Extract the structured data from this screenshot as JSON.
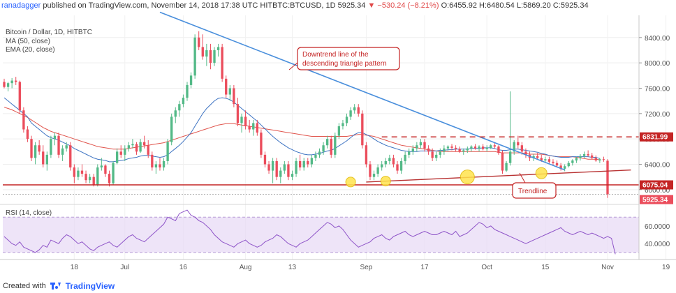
{
  "header": {
    "user": "ranadagger",
    "published": "published on TradingView.com, November 14, 2018 17:38 UTC",
    "symbol": "HITBTC:BTCUSD, 1D",
    "last": "5925.34",
    "change_arrow": "▼",
    "change": "−530.24 (−8.21%)",
    "open": "O:6455.92",
    "high": "H:6480.54",
    "low": "L:5869.20",
    "close": "C:5925.34"
  },
  "footer": {
    "created": "Created with",
    "brand": "TradingView"
  },
  "chart_data": {
    "type": "candlestick",
    "title": "Bitcoin / Dollar, 1D, HITBTC",
    "indicators": [
      "MA (50, close)",
      "EMA (20, close)"
    ],
    "colors": {
      "up": "#53b987",
      "down": "#eb4d5c",
      "ma50": "#e0544c",
      "ema20": "#3d73c2",
      "downtrend": "#4a8fdc",
      "support": "#c42424",
      "rsi": "#8e54c8",
      "rsi_band": "#e7d9f5"
    },
    "x_tick_labels": [
      "18",
      "Jul",
      "16",
      "Aug",
      "13",
      "Sep",
      "17",
      "Oct",
      "15",
      "Nov",
      "19"
    ],
    "x_tick_days": [
      18,
      31,
      46,
      62,
      74,
      93,
      108,
      124,
      139,
      155,
      170
    ],
    "price_ticks": [
      "8400.00",
      "8000.00",
      "7600.00",
      "7200.00",
      "6800.00",
      "6400.00",
      "6000.00"
    ],
    "ylim": [
      5800,
      8750
    ],
    "levels": [
      {
        "name": "resistance",
        "value": 6831.99,
        "label": "6831.99"
      },
      {
        "name": "support",
        "value": 6075.04,
        "label": "6075.04"
      },
      {
        "name": "last",
        "value": 5925.34,
        "label": "5925.34"
      }
    ],
    "annotations": [
      "Downtrend line of the descending triangle pattern",
      "Trendline"
    ],
    "rsi": {
      "label": "RSI (14, close)",
      "ticks": [
        "60.0000",
        "40.0000"
      ],
      "ylim": [
        22,
        82
      ],
      "band": [
        30,
        70
      ],
      "values": [
        48,
        44,
        40,
        38,
        42,
        36,
        34,
        32,
        30,
        33,
        38,
        36,
        44,
        42,
        40,
        46,
        50,
        48,
        44,
        40,
        42,
        38,
        34,
        32,
        36,
        38,
        40,
        42,
        38,
        36,
        40,
        44,
        48,
        50,
        46,
        44,
        42,
        46,
        50,
        54,
        58,
        62,
        70,
        68,
        66,
        74,
        76,
        78,
        72,
        70,
        66,
        64,
        60,
        56,
        50,
        46,
        42,
        40,
        38,
        36,
        40,
        42,
        44,
        40,
        38,
        36,
        38,
        42,
        44,
        46,
        50,
        48,
        44,
        40,
        38,
        36,
        40,
        42,
        44,
        48,
        52,
        56,
        60,
        64,
        62,
        58,
        60,
        56,
        50,
        44,
        40,
        36,
        38,
        40,
        42,
        46,
        48,
        50,
        46,
        44,
        48,
        50,
        52,
        54,
        50,
        48,
        50,
        52,
        54,
        52,
        50,
        50,
        52,
        54,
        52,
        50,
        54,
        48,
        50,
        52,
        56,
        60,
        64,
        62,
        58,
        60,
        56,
        54,
        52,
        50,
        48,
        46,
        44,
        42,
        40,
        42,
        44,
        46,
        48,
        50,
        52,
        54,
        56,
        58,
        54,
        52,
        50,
        52,
        54,
        52,
        50,
        52,
        50,
        48,
        46,
        48,
        46,
        28
      ]
    },
    "ohlc": [
      [
        7700,
        7750,
        7600,
        7620
      ],
      [
        7620,
        7700,
        7550,
        7680
      ],
      [
        7680,
        7760,
        7600,
        7720
      ],
      [
        7720,
        7780,
        7650,
        7700
      ],
      [
        7700,
        7720,
        7200,
        7250
      ],
      [
        7250,
        7300,
        6900,
        6950
      ],
      [
        6950,
        7000,
        6750,
        6800
      ],
      [
        6800,
        6850,
        6450,
        6500
      ],
      [
        6500,
        6750,
        6400,
        6700
      ],
      [
        6700,
        6780,
        6550,
        6600
      ],
      [
        6600,
        6700,
        6350,
        6400
      ],
      [
        6400,
        6600,
        6300,
        6550
      ],
      [
        6550,
        6850,
        6500,
        6800
      ],
      [
        6800,
        6900,
        6700,
        6850
      ],
      [
        6850,
        6900,
        6500,
        6550
      ],
      [
        6550,
        6700,
        6450,
        6650
      ],
      [
        6650,
        6750,
        6600,
        6700
      ],
      [
        6700,
        6750,
        6300,
        6350
      ],
      [
        6350,
        6400,
        6100,
        6200
      ],
      [
        6200,
        6350,
        6150,
        6300
      ],
      [
        6300,
        6400,
        6200,
        6250
      ],
      [
        6250,
        6300,
        6100,
        6150
      ],
      [
        6150,
        6250,
        6100,
        6200
      ],
      [
        6200,
        6250,
        6050,
        6080
      ],
      [
        6080,
        6400,
        6050,
        6350
      ],
      [
        6350,
        6500,
        6300,
        6380
      ],
      [
        6380,
        6400,
        6200,
        6250
      ],
      [
        6250,
        6300,
        6050,
        6100
      ],
      [
        6100,
        6450,
        6080,
        6420
      ],
      [
        6420,
        6650,
        6400,
        6600
      ],
      [
        6600,
        6700,
        6500,
        6550
      ],
      [
        6550,
        6700,
        6450,
        6650
      ],
      [
        6650,
        6750,
        6600,
        6700
      ],
      [
        6700,
        6800,
        6650,
        6720
      ],
      [
        6720,
        6750,
        6550,
        6600
      ],
      [
        6600,
        6800,
        6580,
        6750
      ],
      [
        6750,
        6850,
        6650,
        6700
      ],
      [
        6700,
        6780,
        6500,
        6550
      ],
      [
        6550,
        6600,
        6300,
        6350
      ],
      [
        6350,
        6450,
        6250,
        6400
      ],
      [
        6400,
        6500,
        6300,
        6350
      ],
      [
        6350,
        6500,
        6300,
        6450
      ],
      [
        6450,
        6800,
        6400,
        6750
      ],
      [
        6750,
        7200,
        6700,
        7150
      ],
      [
        7150,
        7300,
        7050,
        7250
      ],
      [
        7250,
        7400,
        7150,
        7350
      ],
      [
        7350,
        7500,
        7300,
        7450
      ],
      [
        7450,
        7700,
        7400,
        7650
      ],
      [
        7650,
        7850,
        7600,
        7800
      ],
      [
        7800,
        8450,
        7750,
        8400
      ],
      [
        8400,
        8500,
        8200,
        8250
      ],
      [
        8250,
        8450,
        8050,
        8100
      ],
      [
        8100,
        8300,
        7950,
        8200
      ],
      [
        8200,
        8300,
        7900,
        8000
      ],
      [
        8000,
        8250,
        7950,
        8200
      ],
      [
        8200,
        8300,
        8100,
        8250
      ],
      [
        8250,
        8300,
        7700,
        7750
      ],
      [
        7750,
        7800,
        7450,
        7500
      ],
      [
        7500,
        7650,
        7400,
        7600
      ],
      [
        7600,
        7650,
        7300,
        7350
      ],
      [
        7350,
        7450,
        7000,
        7050
      ],
      [
        7050,
        7200,
        6900,
        7150
      ],
      [
        7150,
        7250,
        6950,
        7000
      ],
      [
        7000,
        7100,
        6900,
        6950
      ],
      [
        6950,
        7100,
        6850,
        7050
      ],
      [
        7050,
        7100,
        6850,
        6900
      ],
      [
        6900,
        6950,
        6500,
        6550
      ],
      [
        6550,
        6600,
        6350,
        6400
      ],
      [
        6400,
        6450,
        6250,
        6300
      ],
      [
        6300,
        6500,
        6100,
        6450
      ],
      [
        6450,
        6500,
        6150,
        6200
      ],
      [
        6200,
        6350,
        6100,
        6300
      ],
      [
        6300,
        6450,
        6250,
        6400
      ],
      [
        6400,
        6450,
        6150,
        6200
      ],
      [
        6200,
        6300,
        6150,
        6250
      ],
      [
        6250,
        6500,
        6200,
        6450
      ],
      [
        6450,
        6550,
        6300,
        6350
      ],
      [
        6350,
        6500,
        6300,
        6450
      ],
      [
        6450,
        6500,
        6350,
        6400
      ],
      [
        6400,
        6550,
        6350,
        6500
      ],
      [
        6500,
        6600,
        6450,
        6550
      ],
      [
        6550,
        6650,
        6500,
        6600
      ],
      [
        6600,
        6750,
        6550,
        6700
      ],
      [
        6700,
        6850,
        6650,
        6800
      ],
      [
        6800,
        6850,
        6500,
        6550
      ],
      [
        6550,
        6900,
        6500,
        6850
      ],
      [
        6850,
        7050,
        6800,
        7000
      ],
      [
        7000,
        7100,
        6950,
        7050
      ],
      [
        7050,
        7200,
        7000,
        7150
      ],
      [
        7150,
        7300,
        7100,
        7250
      ],
      [
        7250,
        7350,
        7200,
        7300
      ],
      [
        7300,
        7350,
        7150,
        7200
      ],
      [
        7200,
        7250,
        6650,
        6700
      ],
      [
        6700,
        6750,
        6350,
        6400
      ],
      [
        6400,
        6450,
        6150,
        6200
      ],
      [
        6200,
        6300,
        6150,
        6250
      ],
      [
        6250,
        6400,
        6200,
        6350
      ],
      [
        6350,
        6450,
        6300,
        6400
      ],
      [
        6400,
        6500,
        6350,
        6450
      ],
      [
        6450,
        6550,
        6400,
        6500
      ],
      [
        6500,
        6550,
        6350,
        6400
      ],
      [
        6400,
        6450,
        6250,
        6300
      ],
      [
        6300,
        6500,
        6250,
        6450
      ],
      [
        6450,
        6600,
        6400,
        6550
      ],
      [
        6550,
        6650,
        6500,
        6600
      ],
      [
        6600,
        6700,
        6550,
        6650
      ],
      [
        6650,
        6750,
        6600,
        6700
      ],
      [
        6700,
        6800,
        6650,
        6750
      ],
      [
        6750,
        6800,
        6600,
        6650
      ],
      [
        6650,
        6700,
        6550,
        6600
      ],
      [
        6600,
        6650,
        6450,
        6500
      ],
      [
        6500,
        6600,
        6450,
        6550
      ],
      [
        6550,
        6650,
        6500,
        6600
      ],
      [
        6600,
        6700,
        6550,
        6650
      ],
      [
        6650,
        6700,
        6600,
        6680
      ],
      [
        6680,
        6720,
        6620,
        6660
      ],
      [
        6660,
        6700,
        6600,
        6640
      ],
      [
        6640,
        6680,
        6580,
        6600
      ],
      [
        6600,
        6650,
        6550,
        6620
      ],
      [
        6620,
        6680,
        6580,
        6650
      ],
      [
        6650,
        6700,
        6600,
        6680
      ],
      [
        6680,
        6720,
        6630,
        6650
      ],
      [
        6650,
        6700,
        6600,
        6680
      ],
      [
        6680,
        6720,
        6620,
        6640
      ],
      [
        6640,
        6700,
        6600,
        6660
      ],
      [
        6660,
        6720,
        6640,
        6700
      ],
      [
        6700,
        6740,
        6650,
        6680
      ],
      [
        6680,
        6700,
        6550,
        6580
      ],
      [
        6580,
        6620,
        6250,
        6300
      ],
      [
        6300,
        6450,
        6280,
        6420
      ],
      [
        6420,
        7550,
        6380,
        6600
      ],
      [
        6600,
        6780,
        6550,
        6750
      ],
      [
        6750,
        6850,
        6650,
        6700
      ],
      [
        6700,
        6750,
        6550,
        6600
      ],
      [
        6600,
        6650,
        6500,
        6550
      ],
      [
        6550,
        6600,
        6450,
        6500
      ],
      [
        6500,
        6560,
        6450,
        6530
      ],
      [
        6530,
        6580,
        6480,
        6500
      ],
      [
        6500,
        6550,
        6440,
        6460
      ],
      [
        6460,
        6520,
        6420,
        6480
      ],
      [
        6480,
        6520,
        6400,
        6440
      ],
      [
        6440,
        6480,
        6380,
        6420
      ],
      [
        6420,
        6460,
        6350,
        6380
      ],
      [
        6380,
        6420,
        6300,
        6330
      ],
      [
        6330,
        6400,
        6290,
        6370
      ],
      [
        6370,
        6450,
        6350,
        6420
      ],
      [
        6420,
        6480,
        6380,
        6460
      ],
      [
        6460,
        6520,
        6420,
        6500
      ],
      [
        6500,
        6560,
        6460,
        6530
      ],
      [
        6530,
        6600,
        6500,
        6560
      ],
      [
        6560,
        6620,
        6520,
        6540
      ],
      [
        6540,
        6580,
        6480,
        6500
      ],
      [
        6500,
        6540,
        6440,
        6460
      ],
      [
        6460,
        6500,
        6420,
        6480
      ],
      [
        6480,
        6520,
        6440,
        6470
      ],
      [
        6455.92,
        6480.54,
        5869.2,
        5925.34
      ]
    ],
    "ma50": [
      7300,
      7280,
      7260,
      7230,
      7200,
      7170,
      7140,
      7100,
      7060,
      7020,
      6980,
      6950,
      6920,
      6900,
      6880,
      6860,
      6840,
      6820,
      6800,
      6780,
      6760,
      6740,
      6720,
      6700,
      6680,
      6670,
      6660,
      6650,
      6640,
      6640,
      6640,
      6640,
      6650,
      6660,
      6670,
      6680,
      6690,
      6700,
      6710,
      6720,
      6730,
      6740,
      6760,
      6780,
      6800,
      6820,
      6840,
      6860,
      6880,
      6900,
      6920,
      6940,
      6960,
      6980,
      7000,
      7020,
      7030,
      7040,
      7040,
      7040,
      7030,
      7020,
      7010,
      7000,
      6990,
      6980,
      6970,
      6960,
      6950,
      6940,
      6930,
      6920,
      6910,
      6900,
      6890,
      6880,
      6870,
      6860,
      6850,
      6840,
      6840,
      6840,
      6840,
      6840,
      6840,
      6840,
      6840,
      6840,
      6840,
      6850,
      6860,
      6870,
      6870,
      6860,
      6850,
      6840,
      6820,
      6800,
      6780,
      6760,
      6740,
      6720,
      6700,
      6690,
      6680,
      6670,
      6660,
      6650,
      6640,
      6630,
      6620,
      6610,
      6600,
      6600,
      6600,
      6600,
      6600,
      6600,
      6600,
      6600,
      6600,
      6600,
      6600,
      6600,
      6600,
      6600,
      6600,
      6590,
      6580,
      6580,
      6580,
      6580,
      6580,
      6580,
      6570,
      6560,
      6560,
      6560,
      6560,
      6550,
      6540,
      6530,
      6520,
      6520,
      6520,
      6520,
      6520,
      6510,
      6500,
      6490,
      6480,
      6480,
      6480,
      6470
    ],
    "ema20": [
      7450,
      7400,
      7350,
      7300,
      7250,
      7200,
      7150,
      7050,
      7000,
      6950,
      6900,
      6850,
      6820,
      6800,
      6780,
      6750,
      6720,
      6690,
      6650,
      6620,
      6590,
      6560,
      6530,
      6500,
      6480,
      6470,
      6460,
      6440,
      6440,
      6450,
      6460,
      6470,
      6490,
      6500,
      6510,
      6530,
      6540,
      6540,
      6530,
      6520,
      6510,
      6520,
      6550,
      6600,
      6650,
      6700,
      6760,
      6830,
      6900,
      7000,
      7100,
      7200,
      7280,
      7340,
      7400,
      7440,
      7450,
      7440,
      7420,
      7380,
      7330,
      7280,
      7230,
      7180,
      7130,
      7080,
      7020,
      6960,
      6900,
      6840,
      6790,
      6740,
      6700,
      6660,
      6630,
      6600,
      6580,
      6560,
      6550,
      6550,
      6560,
      6570,
      6590,
      6610,
      6620,
      6650,
      6690,
      6730,
      6770,
      6820,
      6870,
      6900,
      6900,
      6870,
      6840,
      6800,
      6760,
      6730,
      6700,
      6680,
      6660,
      6640,
      6620,
      6610,
      6600,
      6600,
      6600,
      6610,
      6610,
      6610,
      6610,
      6610,
      6620,
      6620,
      6630,
      6630,
      6640,
      6640,
      6640,
      6640,
      6650,
      6650,
      6650,
      6660,
      6660,
      6660,
      6650,
      6630,
      6620,
      6620,
      6630,
      6640,
      6640,
      6630,
      6620,
      6610,
      6600,
      6590,
      6570,
      6560,
      6540,
      6530,
      6520,
      6510,
      6510,
      6510,
      6520,
      6520,
      6520,
      6520,
      6520,
      6510,
      6510,
      6490
    ]
  }
}
